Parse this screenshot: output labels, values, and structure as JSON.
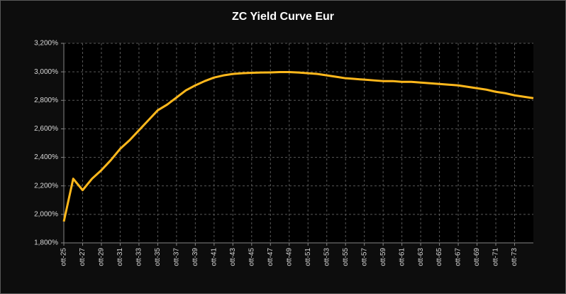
{
  "chart_data": {
    "type": "line",
    "title": "ZC Yield Curve Eur",
    "categories": [
      "ott-25",
      null,
      "ott-27",
      null,
      "ott-29",
      null,
      "ott-31",
      null,
      "ott-33",
      null,
      "ott-35",
      null,
      "ott-37",
      null,
      "ott-39",
      null,
      "ott-41",
      null,
      "ott-43",
      null,
      "ott-45",
      null,
      "ott-47",
      null,
      "ott-49",
      null,
      "ott-51",
      null,
      "ott-53",
      null,
      "ott-55",
      null,
      "ott-57",
      null,
      "ott-59",
      null,
      "ott-61",
      null,
      "ott-63",
      null,
      "ott-65",
      null,
      "ott-67",
      null,
      "ott-69",
      null,
      "ott-71",
      null,
      "ott-73",
      null,
      null
    ],
    "series": [
      {
        "color": "#ffb81c",
        "values": [
          1.95,
          2.25,
          2.17,
          2.25,
          2.31,
          2.38,
          2.46,
          2.52,
          2.59,
          2.66,
          2.73,
          2.77,
          2.82,
          2.87,
          2.905,
          2.935,
          2.96,
          2.975,
          2.985,
          2.99,
          2.993,
          2.995,
          2.996,
          2.998,
          2.998,
          2.995,
          2.99,
          2.985,
          2.975,
          2.965,
          2.955,
          2.95,
          2.945,
          2.94,
          2.935,
          2.935,
          2.93,
          2.93,
          2.925,
          2.92,
          2.915,
          2.91,
          2.905,
          2.895,
          2.885,
          2.875,
          2.86,
          2.85,
          2.835,
          2.825,
          2.815
        ]
      }
    ],
    "ylim": [
      1.8,
      3.2
    ],
    "yticks": [
      {
        "value": 1.8,
        "label": "1,800%"
      },
      {
        "value": 2.0,
        "label": "2,000%"
      },
      {
        "value": 2.2,
        "label": "2,200%"
      },
      {
        "value": 2.4,
        "label": "2,400%"
      },
      {
        "value": 2.6,
        "label": "2,600%"
      },
      {
        "value": 2.8,
        "label": "2,800%"
      },
      {
        "value": 3.0,
        "label": "3,000%"
      },
      {
        "value": 3.2,
        "label": "3,200%"
      }
    ],
    "grid": true
  }
}
